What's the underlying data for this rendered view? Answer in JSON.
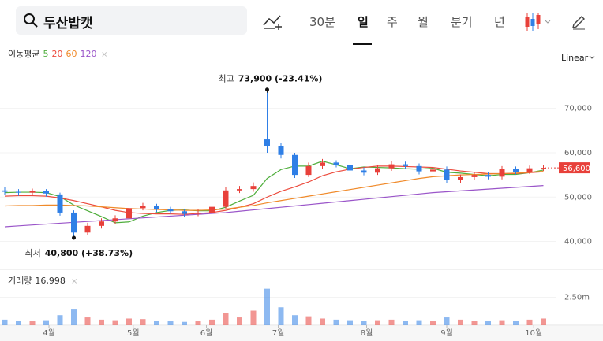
{
  "toolbar": {
    "search": "두산밥캣",
    "periods": [
      "30분",
      "일",
      "주",
      "월",
      "분기",
      "년"
    ],
    "selected_period": 1
  },
  "chart_data": {
    "type": "candlestick",
    "scale_label": "Linear",
    "ma_title": "이동평균",
    "up_color": "#e8403a",
    "down_color": "#2f7fe6",
    "open": [
      51500,
      51200,
      51000,
      51300,
      50600,
      46500,
      42000,
      43500,
      44500,
      45200,
      47500,
      48000,
      47200,
      46800,
      46200,
      46500,
      47800,
      51500,
      51800,
      63000,
      61500,
      59500,
      55000,
      57000,
      57800,
      57300,
      56000,
      55500,
      56500,
      57400,
      57000,
      55800,
      56200,
      53800,
      54500,
      55000,
      54600,
      56400,
      55700,
      56500
    ],
    "high": [
      52200,
      51800,
      51900,
      51800,
      51000,
      47000,
      44200,
      45200,
      45900,
      48200,
      48700,
      48500,
      47800,
      47300,
      47200,
      48500,
      52300,
      52500,
      53300,
      73900,
      62200,
      60000,
      57800,
      58600,
      58300,
      57900,
      56700,
      57200,
      58100,
      58000,
      57600,
      56800,
      56900,
      55100,
      55700,
      55600,
      57000,
      56900,
      57100,
      57300
    ],
    "low": [
      50500,
      50300,
      50300,
      50100,
      45800,
      40800,
      41500,
      42900,
      43900,
      44600,
      47000,
      46600,
      46200,
      45600,
      45700,
      45900,
      47200,
      50900,
      51200,
      60000,
      58700,
      54300,
      54500,
      56400,
      56700,
      55400,
      54900,
      55000,
      55900,
      56400,
      55100,
      55300,
      53200,
      53200,
      53900,
      54000,
      54000,
      55100,
      55200,
      55900
    ],
    "close": [
      51200,
      51000,
      51300,
      50800,
      46500,
      42000,
      43500,
      44500,
      45200,
      47500,
      48000,
      47200,
      46800,
      46200,
      46500,
      47800,
      51500,
      51800,
      52500,
      61500,
      59500,
      55000,
      57000,
      57800,
      57300,
      56000,
      55500,
      56500,
      57400,
      57000,
      55800,
      56200,
      53800,
      54500,
      55000,
      54600,
      56400,
      55700,
      56500,
      56600
    ],
    "ma": [
      {
        "name": "5",
        "color": "#4fae3c",
        "values": [
          51000,
          51100,
          51100,
          51000,
          50100,
          48200,
          46900,
          45600,
          44200,
          44400,
          45700,
          46500,
          47000,
          47100,
          46900,
          46900,
          47700,
          49100,
          50400,
          54200,
          56200,
          57000,
          57000,
          58100,
          57300,
          56400,
          56800,
          56700,
          56600,
          56400,
          56300,
          56500,
          55600,
          55400,
          55100,
          54800,
          55100,
          55100,
          55500,
          56100
        ]
      },
      {
        "name": "20",
        "color": "#ec4a3c",
        "values": [
          50200,
          50300,
          50300,
          50200,
          49800,
          49200,
          48500,
          47800,
          47000,
          46500,
          46300,
          46200,
          46200,
          46100,
          46300,
          46500,
          47000,
          47700,
          48500,
          50000,
          51300,
          52300,
          53400,
          54800,
          55700,
          56300,
          56700,
          57000,
          57000,
          56900,
          56800,
          56700,
          56300,
          55900,
          55600,
          55300,
          55300,
          55300,
          55500,
          55700
        ]
      },
      {
        "name": "60",
        "color": "#f08a2a",
        "values": [
          48000,
          48100,
          48100,
          48200,
          48200,
          48100,
          48000,
          47800,
          47600,
          47400,
          47300,
          47200,
          47100,
          47000,
          47000,
          47100,
          47300,
          47700,
          48100,
          48700,
          49200,
          49700,
          50200,
          50700,
          51200,
          51700,
          52200,
          52700,
          53200,
          53700,
          54200,
          54600,
          54800,
          55000,
          55100,
          55200,
          55300,
          55400,
          55600,
          55800
        ]
      },
      {
        "name": "120",
        "color": "#9a55c9",
        "values": [
          43300,
          43500,
          43700,
          43900,
          44100,
          44300,
          44500,
          44700,
          44900,
          45100,
          45300,
          45500,
          45700,
          45900,
          46100,
          46300,
          46500,
          46800,
          47100,
          47400,
          47700,
          48000,
          48300,
          48600,
          48900,
          49200,
          49500,
          49800,
          50100,
          50400,
          50700,
          51000,
          51200,
          51400,
          51600,
          51800,
          52000,
          52200,
          52400,
          52600
        ]
      }
    ],
    "ylim": [
      33700,
      83800
    ],
    "yticks": [
      {
        "value": 40000,
        "label": "40,000"
      },
      {
        "value": 50000,
        "label": "50,000"
      },
      {
        "value": 60000,
        "label": "60,000"
      },
      {
        "value": 70000,
        "label": "70,000"
      }
    ],
    "xticks": [
      {
        "value": 3.2,
        "label": "4월"
      },
      {
        "value": 9.3,
        "label": "5월"
      },
      {
        "value": 14.6,
        "label": "6월"
      },
      {
        "value": 19.8,
        "label": "7월"
      },
      {
        "value": 26.2,
        "label": "8월"
      },
      {
        "value": 32,
        "label": "9월"
      },
      {
        "value": 38.3,
        "label": "10월"
      }
    ],
    "last_price": {
      "value": 56600,
      "label": "56,600"
    },
    "annotations": [
      {
        "label": "최고",
        "value": 73900,
        "value_label": "73,900 (-23.41%)",
        "index": 19
      },
      {
        "label": "최저",
        "value": 40800,
        "value_label": "40,800 (+38.73%)",
        "index": 5
      }
    ],
    "volume": {
      "label": "거래량",
      "value": 16998,
      "value_label": "16,998",
      "values": [
        500000,
        400000,
        350000,
        450000,
        900000,
        1400000,
        700000,
        500000,
        450000,
        600000,
        550000,
        400000,
        350000,
        300000,
        350000,
        500000,
        1100000,
        700000,
        1300000,
        3260000,
        1600000,
        900000,
        800000,
        600000,
        500000,
        450000,
        400000,
        450000,
        500000,
        400000,
        450000,
        350000,
        700000,
        500000,
        400000,
        350000,
        450000,
        400000,
        500000,
        600000
      ],
      "ylim": [
        0,
        4500000
      ],
      "yticks": [
        {
          "value": 2500000,
          "label": "2.50m"
        }
      ]
    }
  }
}
